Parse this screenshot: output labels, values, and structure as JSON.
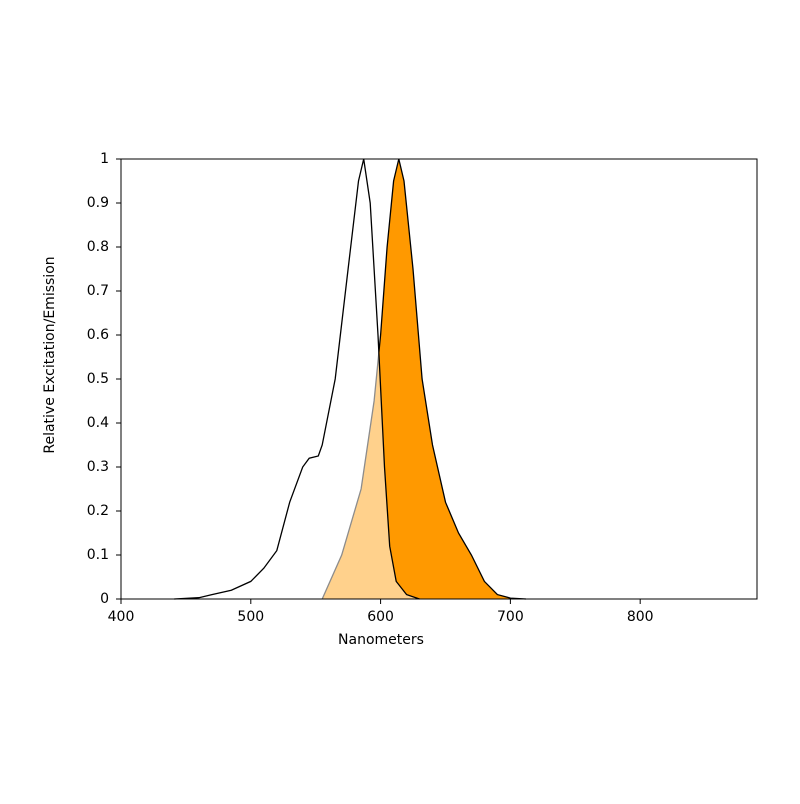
{
  "chart_data": {
    "type": "area",
    "xlabel": "Nanometers",
    "ylabel": "Relative Excitation/Emission",
    "xlim": [
      400,
      890
    ],
    "ylim": [
      0,
      1
    ],
    "xticks": [
      400,
      500,
      600,
      700,
      800
    ],
    "yticks": [
      0,
      0.1,
      0.2,
      0.3,
      0.4,
      0.5,
      0.6,
      0.7,
      0.8,
      0.9,
      1
    ],
    "grid": false,
    "series": [
      {
        "color": "#ff9900",
        "x": [
          555,
          570,
          585,
          595,
          600,
          605,
          610,
          614,
          618,
          625,
          632,
          640,
          650,
          660,
          670,
          680,
          690,
          700,
          712
        ],
        "values": [
          0,
          0.1,
          0.25,
          0.45,
          0.6,
          0.8,
          0.95,
          1.0,
          0.95,
          0.75,
          0.5,
          0.35,
          0.22,
          0.15,
          0.1,
          0.04,
          0.01,
          0.002,
          0
        ]
      },
      {
        "color": "#ffffff",
        "x": [
          441,
          460,
          470,
          485,
          500,
          510,
          520,
          530,
          540,
          545,
          552,
          555,
          565,
          575,
          583,
          587,
          592,
          598,
          603,
          607,
          612,
          620,
          630
        ],
        "values": [
          0,
          0.003,
          0.01,
          0.02,
          0.04,
          0.07,
          0.11,
          0.22,
          0.3,
          0.32,
          0.325,
          0.35,
          0.5,
          0.75,
          0.95,
          1.0,
          0.9,
          0.6,
          0.3,
          0.12,
          0.04,
          0.01,
          0
        ]
      }
    ]
  }
}
